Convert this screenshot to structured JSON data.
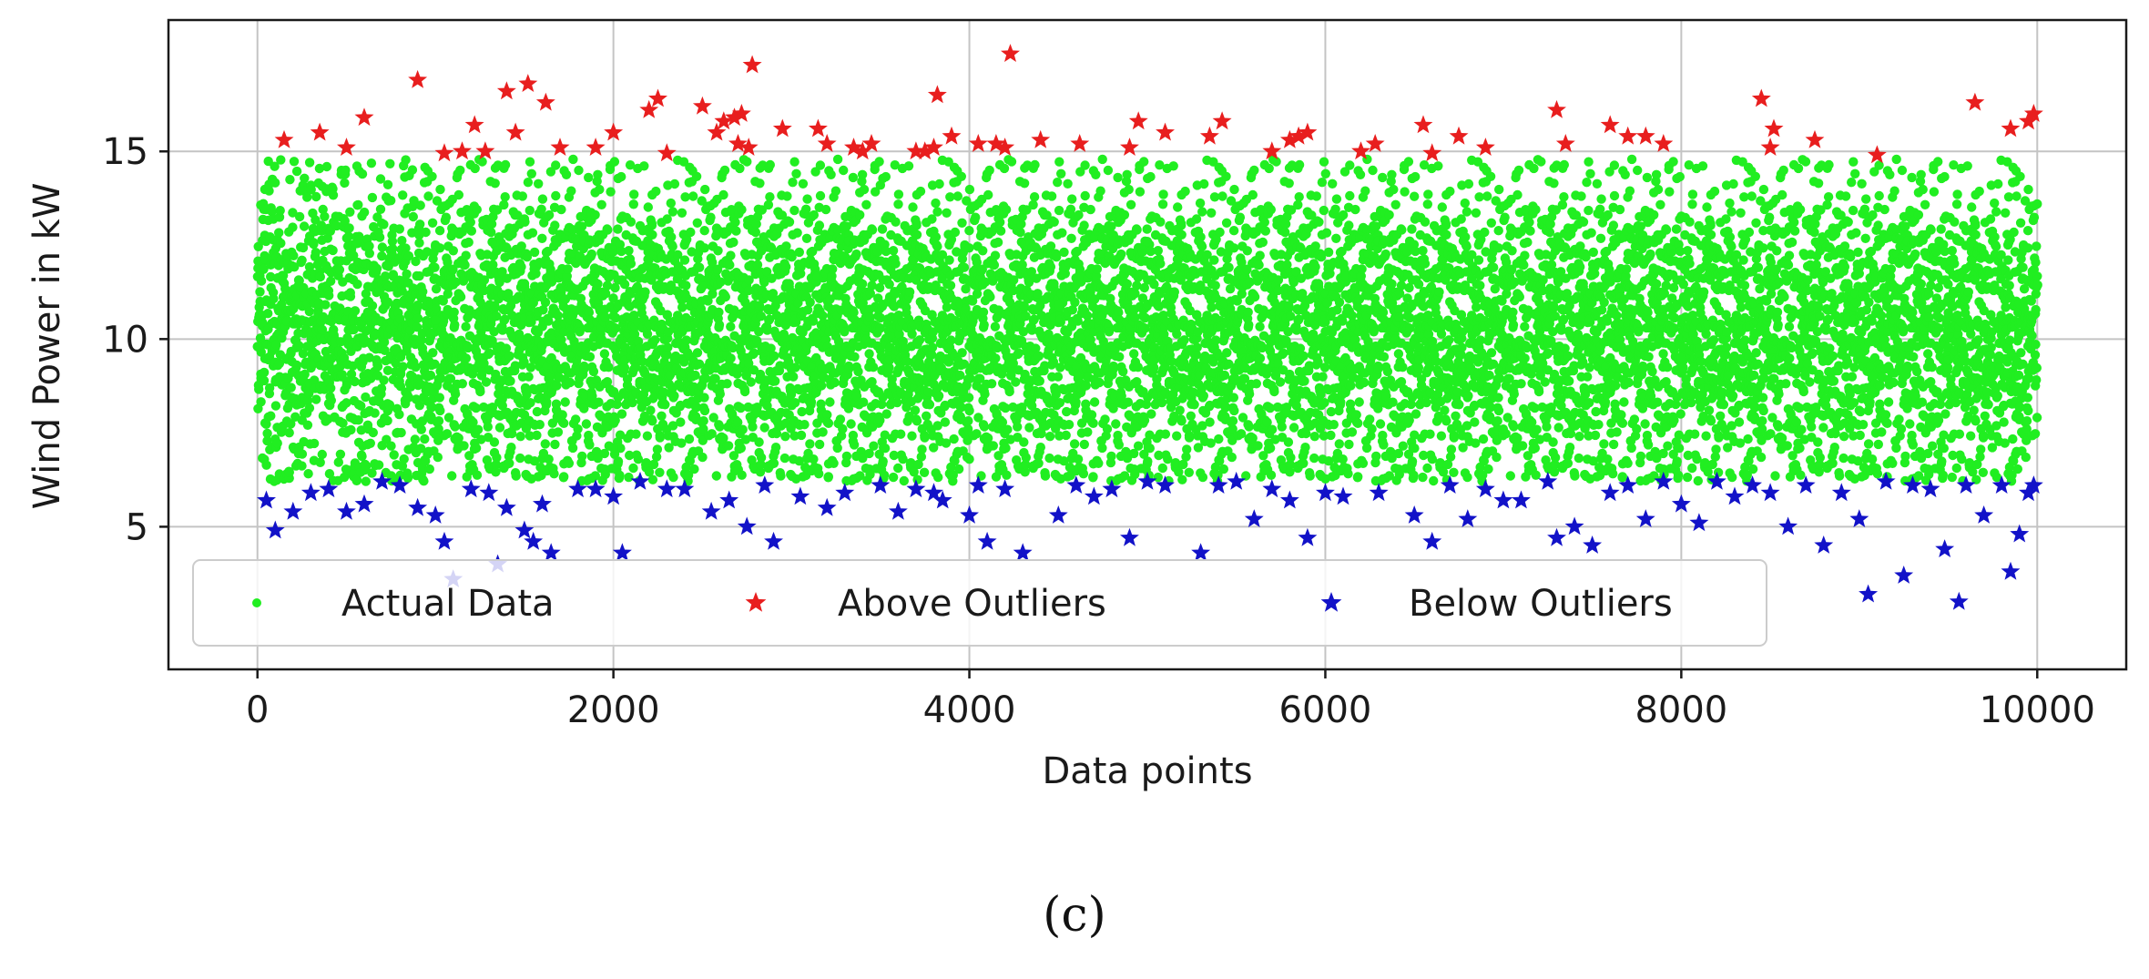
{
  "chart_data": {
    "type": "scatter",
    "xlabel": "Data points",
    "ylabel": "Wind Power in kW",
    "xlim": [
      -500,
      10500
    ],
    "ylim": [
      1.2,
      18.5
    ],
    "xticks": [
      0,
      2000,
      4000,
      6000,
      8000,
      10000
    ],
    "yticks": [
      5,
      10,
      15
    ],
    "xtick_labels": [
      "0",
      "2000",
      "4000",
      "6000",
      "8000",
      "10000"
    ],
    "ytick_labels": [
      "5",
      "10",
      "15"
    ],
    "grid": true,
    "legend": {
      "placement": "lower-left",
      "columns": 3,
      "entries": [
        "Actual Data",
        "Above Outliers",
        "Below Outliers"
      ]
    },
    "series": [
      {
        "name": "Actual Data",
        "marker": "circle",
        "color": "#21ee21",
        "n_points": 10000,
        "x_range": [
          0,
          10000
        ],
        "y_range": [
          6.2,
          14.8
        ],
        "distribution": "approximately normal around 10 kW, bounded to 6.2–14.8 kW",
        "points": [
          [
            0,
            9.8
          ],
          [
            250,
            12.1
          ],
          [
            500,
            8.3
          ],
          [
            1000,
            10.5
          ],
          [
            1500,
            13.2
          ],
          [
            2000,
            7.1
          ],
          [
            2500,
            11.4
          ],
          [
            3000,
            9.2
          ],
          [
            3500,
            14.1
          ],
          [
            4000,
            6.8
          ],
          [
            4500,
            10.9
          ],
          [
            5000,
            12.6
          ],
          [
            5500,
            8.9
          ],
          [
            6000,
            10.2
          ],
          [
            6500,
            13.8
          ],
          [
            7000,
            7.6
          ],
          [
            7500,
            11.7
          ],
          [
            8000,
            9.5
          ],
          [
            8500,
            12.9
          ],
          [
            9000,
            8.1
          ],
          [
            9500,
            10.7
          ],
          [
            10000,
            13.6
          ]
        ]
      },
      {
        "name": "Above Outliers",
        "marker": "star",
        "color": "#e81e1e",
        "points": [
          [
            150,
            15.3
          ],
          [
            350,
            15.5
          ],
          [
            500,
            15.1
          ],
          [
            600,
            15.9
          ],
          [
            900,
            16.9
          ],
          [
            1050,
            14.95
          ],
          [
            1150,
            15.0
          ],
          [
            1220,
            15.7
          ],
          [
            1280,
            15.0
          ],
          [
            1400,
            16.6
          ],
          [
            1450,
            15.5
          ],
          [
            1520,
            16.8
          ],
          [
            1620,
            16.3
          ],
          [
            1700,
            15.1
          ],
          [
            1900,
            15.1
          ],
          [
            2000,
            15.5
          ],
          [
            2200,
            16.1
          ],
          [
            2250,
            16.4
          ],
          [
            2300,
            14.95
          ],
          [
            2500,
            16.2
          ],
          [
            2580,
            15.5
          ],
          [
            2620,
            15.8
          ],
          [
            2680,
            15.9
          ],
          [
            2720,
            16.0
          ],
          [
            2700,
            15.2
          ],
          [
            2760,
            15.1
          ],
          [
            2780,
            17.3
          ],
          [
            2950,
            15.6
          ],
          [
            3150,
            15.6
          ],
          [
            3200,
            15.2
          ],
          [
            3350,
            15.1
          ],
          [
            3400,
            15.0
          ],
          [
            3450,
            15.2
          ],
          [
            3700,
            15.0
          ],
          [
            3750,
            15.0
          ],
          [
            3800,
            15.1
          ],
          [
            3820,
            16.5
          ],
          [
            3900,
            15.4
          ],
          [
            4050,
            15.2
          ],
          [
            4150,
            15.2
          ],
          [
            4200,
            15.1
          ],
          [
            4230,
            17.6
          ],
          [
            4400,
            15.3
          ],
          [
            4620,
            15.2
          ],
          [
            4900,
            15.1
          ],
          [
            4950,
            15.8
          ],
          [
            5100,
            15.5
          ],
          [
            5350,
            15.4
          ],
          [
            5420,
            15.8
          ],
          [
            5700,
            15.0
          ],
          [
            5800,
            15.3
          ],
          [
            5850,
            15.4
          ],
          [
            5900,
            15.5
          ],
          [
            6200,
            15.0
          ],
          [
            6280,
            15.2
          ],
          [
            6550,
            15.7
          ],
          [
            6600,
            14.95
          ],
          [
            6750,
            15.4
          ],
          [
            6900,
            15.1
          ],
          [
            7300,
            16.1
          ],
          [
            7350,
            15.2
          ],
          [
            7600,
            15.7
          ],
          [
            7700,
            15.4
          ],
          [
            7800,
            15.4
          ],
          [
            7900,
            15.2
          ],
          [
            8450,
            16.4
          ],
          [
            8500,
            15.1
          ],
          [
            8520,
            15.6
          ],
          [
            8750,
            15.3
          ],
          [
            9100,
            14.9
          ],
          [
            9650,
            16.3
          ],
          [
            9850,
            15.6
          ],
          [
            9950,
            15.8
          ],
          [
            9980,
            16.0
          ]
        ]
      },
      {
        "name": "Below Outliers",
        "marker": "star",
        "color": "#1212c8",
        "points": [
          [
            50,
            5.7
          ],
          [
            100,
            4.9
          ],
          [
            200,
            5.4
          ],
          [
            300,
            5.9
          ],
          [
            400,
            6.0
          ],
          [
            500,
            5.4
          ],
          [
            600,
            5.6
          ],
          [
            700,
            6.2
          ],
          [
            800,
            6.1
          ],
          [
            900,
            5.5
          ],
          [
            1000,
            5.3
          ],
          [
            1050,
            4.6
          ],
          [
            1100,
            3.6
          ],
          [
            1200,
            6.0
          ],
          [
            1300,
            5.9
          ],
          [
            1350,
            4.0
          ],
          [
            1400,
            5.5
          ],
          [
            1500,
            4.9
          ],
          [
            1550,
            4.6
          ],
          [
            1600,
            5.6
          ],
          [
            1650,
            4.3
          ],
          [
            1800,
            6.0
          ],
          [
            1900,
            6.0
          ],
          [
            2000,
            5.8
          ],
          [
            2050,
            4.3
          ],
          [
            2150,
            6.2
          ],
          [
            2300,
            6.0
          ],
          [
            2400,
            6.0
          ],
          [
            2550,
            5.4
          ],
          [
            2650,
            5.7
          ],
          [
            2750,
            5.0
          ],
          [
            2850,
            6.1
          ],
          [
            2900,
            4.6
          ],
          [
            3050,
            5.8
          ],
          [
            3200,
            5.5
          ],
          [
            3300,
            5.9
          ],
          [
            3500,
            6.1
          ],
          [
            3600,
            5.4
          ],
          [
            3700,
            6.0
          ],
          [
            3800,
            5.9
          ],
          [
            3850,
            5.7
          ],
          [
            4000,
            5.3
          ],
          [
            4050,
            6.1
          ],
          [
            4100,
            4.6
          ],
          [
            4200,
            6.0
          ],
          [
            4300,
            4.3
          ],
          [
            4500,
            5.3
          ],
          [
            4600,
            6.1
          ],
          [
            4700,
            5.8
          ],
          [
            4800,
            6.0
          ],
          [
            4900,
            4.7
          ],
          [
            5000,
            6.2
          ],
          [
            5100,
            6.1
          ],
          [
            5300,
            4.3
          ],
          [
            5400,
            6.1
          ],
          [
            5500,
            6.2
          ],
          [
            5600,
            5.2
          ],
          [
            5700,
            6.0
          ],
          [
            5800,
            5.7
          ],
          [
            5900,
            4.7
          ],
          [
            6000,
            5.9
          ],
          [
            6100,
            5.8
          ],
          [
            6300,
            5.9
          ],
          [
            6500,
            5.3
          ],
          [
            6600,
            4.6
          ],
          [
            6700,
            6.1
          ],
          [
            6800,
            5.2
          ],
          [
            6900,
            6.0
          ],
          [
            7000,
            5.7
          ],
          [
            7100,
            5.7
          ],
          [
            7250,
            6.2
          ],
          [
            7300,
            4.7
          ],
          [
            7400,
            5.0
          ],
          [
            7500,
            4.5
          ],
          [
            7600,
            5.9
          ],
          [
            7700,
            6.1
          ],
          [
            7800,
            5.2
          ],
          [
            7900,
            6.2
          ],
          [
            8000,
            5.6
          ],
          [
            8100,
            5.1
          ],
          [
            8200,
            6.2
          ],
          [
            8300,
            5.8
          ],
          [
            8400,
            6.1
          ],
          [
            8500,
            5.9
          ],
          [
            8600,
            5.0
          ],
          [
            8700,
            6.1
          ],
          [
            8800,
            4.5
          ],
          [
            8900,
            5.9
          ],
          [
            9000,
            5.2
          ],
          [
            9050,
            3.2
          ],
          [
            9150,
            6.2
          ],
          [
            9250,
            3.7
          ],
          [
            9300,
            6.1
          ],
          [
            9400,
            6.0
          ],
          [
            9480,
            4.4
          ],
          [
            9560,
            3.0
          ],
          [
            9600,
            6.1
          ],
          [
            9700,
            5.3
          ],
          [
            9800,
            6.1
          ],
          [
            9850,
            3.8
          ],
          [
            9900,
            4.8
          ],
          [
            9950,
            5.9
          ],
          [
            9980,
            6.1
          ]
        ]
      }
    ]
  },
  "caption": "(c)",
  "colors": {
    "actual": "#21ee21",
    "above": "#e81e1e",
    "below": "#1212c8",
    "grid": "#c4c4c4",
    "axes": "#1a1a1a"
  }
}
